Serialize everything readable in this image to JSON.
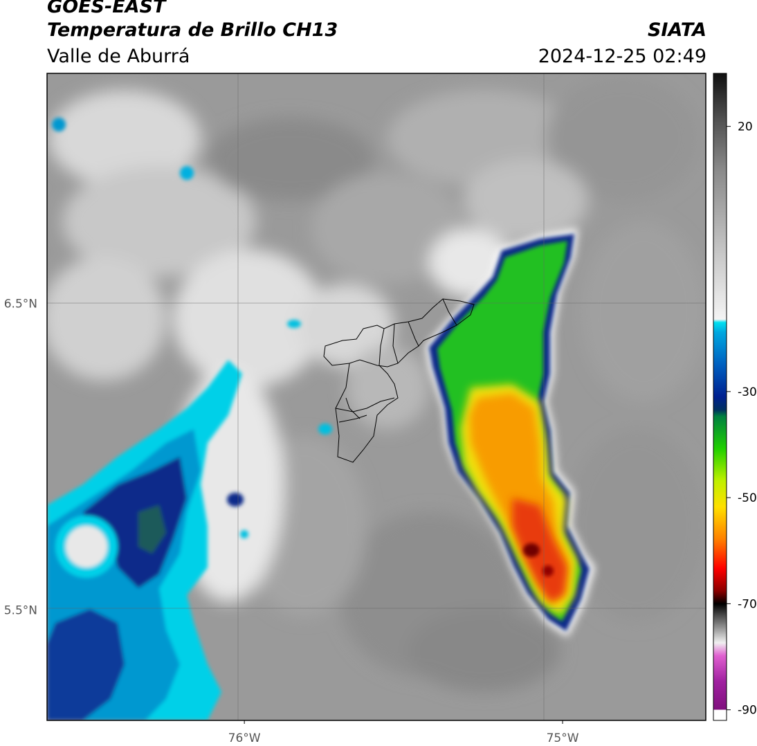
{
  "header": {
    "satellite": "GOES-EAST",
    "product": "Temperatura de Brillo CH13",
    "region": "Valle de Aburrá",
    "agency": "SIATA",
    "datetime": "2024-12-25 02:49"
  },
  "map": {
    "lon_ticks": [
      {
        "value": -76.0,
        "label": "76°W"
      },
      {
        "value": -75.0,
        "label": "75°W"
      }
    ],
    "lat_ticks": [
      {
        "value": 6.5,
        "label": "6.5°N"
      },
      {
        "value": 5.5,
        "label": "5.5°N"
      }
    ],
    "lon_range": [
      -76.62,
      -74.55
    ],
    "lat_range": [
      5.14,
      7.25
    ]
  },
  "colorbar": {
    "ticks": [
      {
        "value": 20,
        "label": "20"
      },
      {
        "value": -30,
        "label": "-30"
      },
      {
        "value": -50,
        "label": "-50"
      },
      {
        "value": -70,
        "label": "-70"
      },
      {
        "value": -90,
        "label": "-90"
      }
    ],
    "range": [
      -92,
      30
    ]
  },
  "colors": {
    "cold_cyan": "#00d0e8",
    "deep_blue": "#0a2a8a",
    "green": "#20c020",
    "yellow": "#f0e010",
    "orange": "#f89c00",
    "red": "#d81010",
    "magenta": "#d040c0"
  }
}
